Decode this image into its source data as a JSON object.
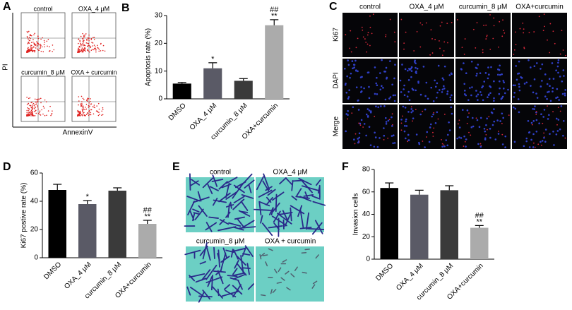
{
  "figure": {
    "panel_labels": [
      "A",
      "B",
      "C",
      "D",
      "E",
      "F"
    ],
    "panel_a": {
      "plots": [
        "control",
        "OXA_4 μM",
        "curcumin_8 μM",
        "OXA + curcumin"
      ],
      "y_label": "PI",
      "x_label": "AnnexinV"
    },
    "panel_c": {
      "columns": [
        "control",
        "OXA_4 μM",
        "curcumin_8 μM",
        "OXA+curcumin"
      ],
      "rows": [
        "Ki67",
        "DAPI",
        "Merge"
      ]
    },
    "panel_e": {
      "images": [
        "control",
        "OXA_4 μM",
        "curcumin_8 μM",
        "OXA + curcumin"
      ]
    }
  },
  "chart_data": [
    {
      "type": "bar",
      "y_label": "Apoptosis rate (%)",
      "categories": [
        "DMSO",
        "OXA_4 μM",
        "curcumin_8 μM",
        "OXA+curcumin"
      ],
      "values": [
        5.5,
        11,
        6.5,
        26.5
      ],
      "errors": [
        0.4,
        2,
        0.8,
        2
      ],
      "colors": [
        "#000000",
        "#5a5a66",
        "#3a3a3a",
        "#ababab"
      ],
      "annotations": [
        [],
        [
          "*"
        ],
        [],
        [
          "##",
          "**"
        ]
      ],
      "ylim": [
        0,
        30
      ],
      "yticks": [
        0,
        10,
        20,
        30
      ]
    },
    {
      "type": "bar",
      "y_label": "Ki67 postive rate (%)",
      "categories": [
        "DMSO",
        "OXA_4 μM",
        "curcumin_8 μM",
        "OXA+curcumin"
      ],
      "values": [
        48,
        38,
        47.5,
        24
      ],
      "errors": [
        4,
        2.5,
        2,
        2.5
      ],
      "colors": [
        "#000000",
        "#5a5a66",
        "#3a3a3a",
        "#ababab"
      ],
      "annotations": [
        [],
        [
          "*"
        ],
        [],
        [
          "##",
          "**"
        ]
      ],
      "ylim": [
        0,
        60
      ],
      "yticks": [
        0,
        20,
        40,
        60
      ]
    },
    {
      "type": "bar",
      "y_label": "Invasion cells",
      "categories": [
        "DMSO",
        "OXA_4 μM",
        "curcumin_8 μM",
        "OXA+curcumin"
      ],
      "values": [
        63.5,
        57.5,
        61.5,
        28
      ],
      "errors": [
        4.5,
        4,
        4,
        2
      ],
      "colors": [
        "#000000",
        "#5a5a66",
        "#3a3a3a",
        "#ababab"
      ],
      "annotations": [
        [],
        [],
        [],
        [
          "##",
          "**"
        ]
      ],
      "ylim": [
        0,
        80
      ],
      "yticks": [
        0,
        20,
        40,
        60,
        80
      ]
    }
  ]
}
